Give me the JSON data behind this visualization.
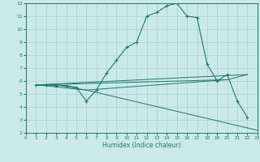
{
  "xlabel": "Humidex (Indice chaleur)",
  "xlim": [
    0,
    23
  ],
  "ylim": [
    2,
    12
  ],
  "xticks": [
    0,
    1,
    2,
    3,
    4,
    5,
    6,
    7,
    8,
    9,
    10,
    11,
    12,
    13,
    14,
    15,
    16,
    17,
    18,
    19,
    20,
    21,
    22,
    23
  ],
  "yticks": [
    2,
    3,
    4,
    5,
    6,
    7,
    8,
    9,
    10,
    11,
    12
  ],
  "bg_color": "#cce9e9",
  "line_color": "#1a7a6e",
  "grid_color": "#aacfcf",
  "line1_x": [
    1,
    2,
    3,
    4,
    5,
    6,
    7,
    8,
    9,
    10,
    11,
    12,
    13,
    14,
    15,
    16,
    17,
    18,
    19,
    20,
    21,
    22
  ],
  "line1_y": [
    5.7,
    5.7,
    5.65,
    5.65,
    5.5,
    4.45,
    5.3,
    6.6,
    7.6,
    8.6,
    9.0,
    11.0,
    11.3,
    11.8,
    12.0,
    11.0,
    10.9,
    7.3,
    6.0,
    6.5,
    4.45,
    3.2
  ],
  "line2_x": [
    1,
    3,
    6,
    23
  ],
  "line2_y": [
    5.7,
    5.7,
    5.3,
    2.2
  ],
  "line3_x": [
    1,
    6,
    20,
    22
  ],
  "line3_y": [
    5.7,
    5.3,
    6.1,
    6.5
  ],
  "line4_x": [
    1,
    22
  ],
  "line4_y": [
    5.7,
    6.5
  ],
  "line5_x": [
    1,
    20
  ],
  "line5_y": [
    5.7,
    6.1
  ]
}
